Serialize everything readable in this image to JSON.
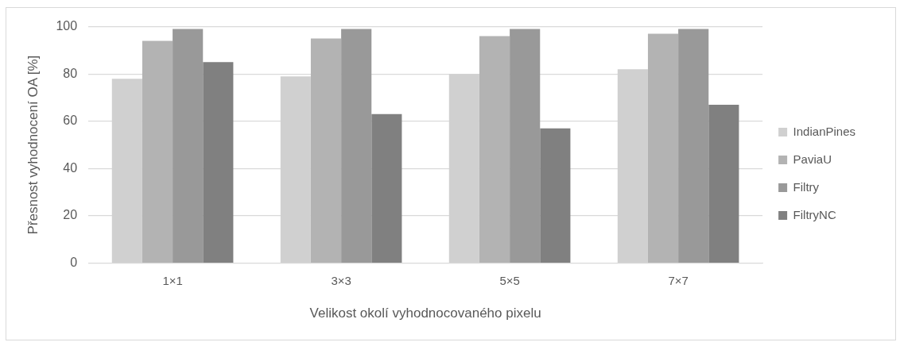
{
  "chart_data": {
    "type": "bar",
    "xlabel": "Velikost okolí vyhodnocovaného pixelu",
    "ylabel": "Přesnost vyhodnocení OA [%]",
    "categories": [
      "1×1",
      "3×3",
      "5×5",
      "7×7"
    ],
    "series": [
      {
        "name": "IndianPines",
        "color": "#d0d0d0",
        "values": [
          78,
          79,
          80,
          82
        ]
      },
      {
        "name": "PaviaU",
        "color": "#b3b3b3",
        "values": [
          94,
          95,
          96,
          97
        ]
      },
      {
        "name": "Filtry",
        "color": "#999999",
        "values": [
          99,
          99,
          99,
          99
        ]
      },
      {
        "name": "FiltryNC",
        "color": "#808080",
        "values": [
          85,
          63,
          57,
          67
        ]
      }
    ],
    "ylim": [
      0,
      100
    ],
    "yticks": [
      0,
      20,
      40,
      60,
      80,
      100
    ],
    "grid": "y",
    "legend": "right"
  }
}
